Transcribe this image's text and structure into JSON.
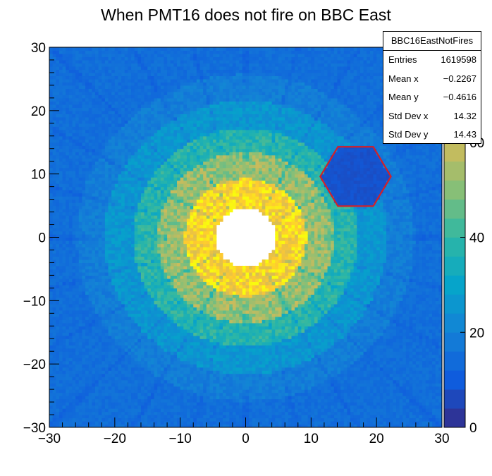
{
  "chart_data": {
    "type": "heatmap",
    "title": "When PMT16 does not fire on BBC East",
    "xlabel": "",
    "ylabel": "",
    "xlim": [
      -30,
      30
    ],
    "ylim": [
      -30,
      30
    ],
    "x_ticks": [
      "−30",
      "−20",
      "−10",
      "0",
      "10",
      "20",
      "30"
    ],
    "y_ticks": [
      "−30",
      "−20",
      "−10",
      "0",
      "10",
      "20",
      "30"
    ],
    "z_range": [
      0,
      80
    ],
    "z_ticks": [
      "0",
      "20",
      "40",
      "60"
    ],
    "colormap": "parula",
    "palette": [
      "#352a87",
      "#0f5cdd",
      "#1481d6",
      "#06a4ca",
      "#2eb7a4",
      "#87bf77",
      "#d1bb59",
      "#fec832",
      "#f9fb0e"
    ],
    "rings": [
      {
        "r_inner": 0,
        "r_outer": 4.6,
        "z": 0
      },
      {
        "r_inner": 4.6,
        "r_outer": 9.3,
        "z": 72
      },
      {
        "r_inner": 9.3,
        "r_outer": 13.5,
        "z": 52
      },
      {
        "r_inner": 13.5,
        "r_outer": 17.2,
        "z": 38
      },
      {
        "r_inner": 17.2,
        "r_outer": 21.6,
        "z": 26
      },
      {
        "r_inner": 21.6,
        "r_outer": 25.8,
        "z": 19
      },
      {
        "r_inner": 25.8,
        "r_outer": 43,
        "z": 15
      }
    ],
    "empty_region": {
      "shape": "hexagon",
      "center": [
        16.8,
        9.6
      ],
      "z": 8
    },
    "highlight": {
      "shape": "hexagon",
      "center": [
        16.8,
        9.6
      ],
      "radius": 5.4,
      "color": "#d42027"
    },
    "stats": {
      "name": "BBC16EastNotFires",
      "entries_label": "Entries",
      "entries": "1619598",
      "mean_x_label": "Mean x",
      "mean_x": "−0.2267",
      "mean_y_label": "Mean y",
      "mean_y": "−0.4616",
      "std_x_label": "Std Dev x",
      "std_x": "14.32",
      "std_y_label": "Std Dev y",
      "std_y": "14.43"
    }
  }
}
